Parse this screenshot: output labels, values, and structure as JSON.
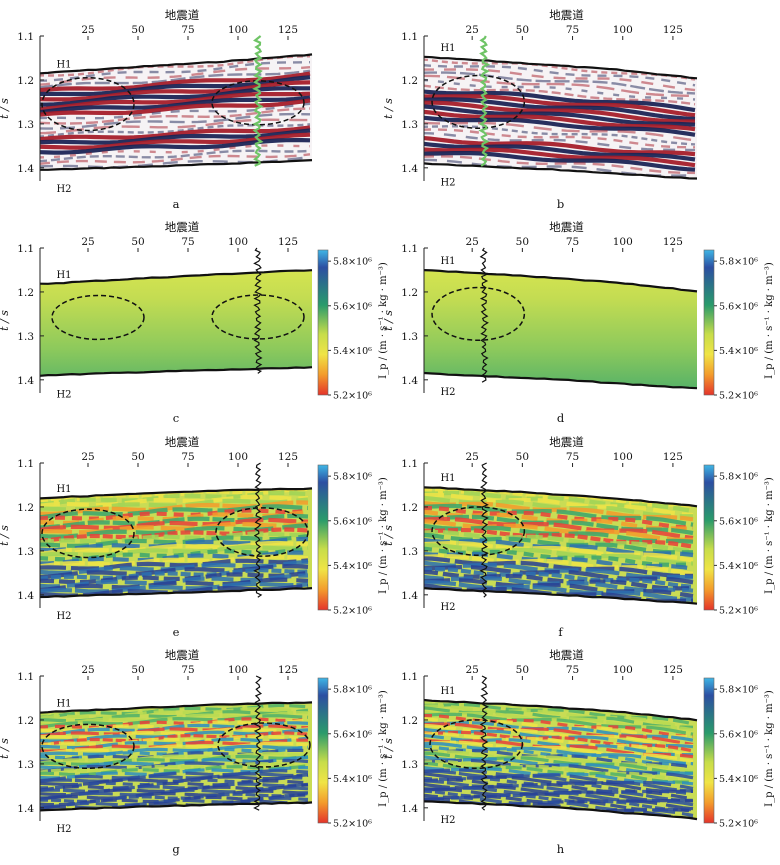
{
  "figure": {
    "top_axis_label": "地震道",
    "y_axis_label": "t / s",
    "colorbar_label": "I_p / (m · s⁻¹ · kg · m⁻³)",
    "colorbar_ticks": [
      "5.8×10⁶",
      "5.6×10⁶",
      "5.4×10⁶",
      "5.2×10⁶"
    ],
    "colors": {
      "trough": "#1b2455",
      "peak": "#a51d2a",
      "well_green": "#6fc466",
      "horizon": "#111111",
      "cmap_low": "#e4342b",
      "cmap_mid": "#f0e446",
      "cmap_high": "#2c4fa2"
    }
  },
  "chart_data": [
    {
      "id": "a",
      "type": "heatmap",
      "caption": "a",
      "kind": "seismic",
      "xlabel": "地震道",
      "ylabel": "t / s",
      "xticks": [
        25,
        50,
        75,
        100,
        125
      ],
      "xlim": [
        1,
        137
      ],
      "yticks": [
        1.1,
        1.2,
        1.3,
        1.4
      ],
      "ylim": [
        1.1,
        1.43
      ],
      "horizons": [
        {
          "name": "H1",
          "points": [
            [
              1,
              1.185
            ],
            [
              40,
              1.173
            ],
            [
              90,
              1.159
            ],
            [
              137,
              1.142
            ]
          ]
        },
        {
          "name": "H2",
          "points": [
            [
              1,
              1.405
            ],
            [
              70,
              1.395
            ],
            [
              137,
              1.383
            ]
          ]
        }
      ],
      "well": {
        "trace": 110,
        "color": "green",
        "t_range": [
          1.1,
          1.4
        ]
      },
      "ellipses": [
        {
          "center": [
            25,
            1.255
          ],
          "radii": [
            23,
            0.06
          ]
        },
        {
          "center": [
            110,
            1.252
          ],
          "radii": [
            23,
            0.05
          ]
        }
      ]
    },
    {
      "id": "b",
      "type": "heatmap",
      "caption": "b",
      "kind": "seismic",
      "xlabel": "地震道",
      "ylabel": "t / s",
      "xticks": [
        25,
        50,
        75,
        100,
        125
      ],
      "xlim": [
        1,
        137
      ],
      "yticks": [
        1.1,
        1.2,
        1.3,
        1.4
      ],
      "ylim": [
        1.1,
        1.43
      ],
      "horizons": [
        {
          "name": "H1",
          "points": [
            [
              1,
              1.148
            ],
            [
              45,
              1.16
            ],
            [
              95,
              1.176
            ],
            [
              137,
              1.196
            ]
          ]
        },
        {
          "name": "H2",
          "points": [
            [
              1,
              1.39
            ],
            [
              70,
              1.405
            ],
            [
              137,
              1.425
            ]
          ]
        }
      ],
      "well": {
        "trace": 31,
        "color": "green",
        "t_range": [
          1.1,
          1.4
        ]
      },
      "ellipses": [
        {
          "center": [
            28,
            1.25
          ],
          "radii": [
            23,
            0.06
          ]
        }
      ]
    },
    {
      "id": "c",
      "type": "heatmap",
      "caption": "c",
      "kind": "impedance-smooth",
      "xlabel": "地震道",
      "ylabel": "t / s",
      "xticks": [
        25,
        50,
        75,
        100,
        125
      ],
      "xlim": [
        1,
        137
      ],
      "yticks": [
        1.1,
        1.2,
        1.3,
        1.4
      ],
      "ylim": [
        1.1,
        1.43
      ],
      "colorbar": {
        "label": "I_p / (m · s⁻¹ · kg · m⁻³)",
        "min": 5200000,
        "max": 5850000,
        "ticks": [
          5800000,
          5600000,
          5400000,
          5200000
        ]
      },
      "horizons": [
        {
          "name": "H1",
          "points": [
            [
              1,
              1.182
            ],
            [
              40,
              1.172
            ],
            [
              90,
              1.16
            ],
            [
              137,
              1.15
            ]
          ]
        },
        {
          "name": "H2",
          "points": [
            [
              1,
              1.39
            ],
            [
              70,
              1.38
            ],
            [
              137,
              1.372
            ]
          ]
        }
      ],
      "well": {
        "trace": 110,
        "color": "black",
        "t_range": [
          1.1,
          1.39
        ]
      },
      "ellipses": [
        {
          "center": [
            30,
            1.258
          ],
          "radii": [
            23,
            0.05
          ]
        },
        {
          "center": [
            110,
            1.257
          ],
          "radii": [
            23,
            0.05
          ]
        }
      ]
    },
    {
      "id": "d",
      "type": "heatmap",
      "caption": "d",
      "kind": "impedance-smooth",
      "xlabel": "地震道",
      "ylabel": "t / s",
      "xticks": [
        25,
        50,
        75,
        100,
        125
      ],
      "xlim": [
        1,
        137
      ],
      "yticks": [
        1.1,
        1.2,
        1.3,
        1.4
      ],
      "ylim": [
        1.1,
        1.43
      ],
      "colorbar": {
        "label": "I_p / (m · s⁻¹ · kg · m⁻³)",
        "min": 5200000,
        "max": 5850000,
        "ticks": [
          5800000,
          5600000,
          5400000,
          5200000
        ]
      },
      "horizons": [
        {
          "name": "H1",
          "points": [
            [
              1,
              1.15
            ],
            [
              45,
              1.162
            ],
            [
              95,
              1.178
            ],
            [
              137,
              1.198
            ]
          ]
        },
        {
          "name": "H2",
          "points": [
            [
              1,
              1.385
            ],
            [
              70,
              1.4
            ],
            [
              137,
              1.42
            ]
          ]
        }
      ],
      "well": {
        "trace": 31,
        "color": "black",
        "t_range": [
          1.1,
          1.41
        ]
      },
      "ellipses": [
        {
          "center": [
            28,
            1.25
          ],
          "radii": [
            23,
            0.06
          ]
        }
      ]
    },
    {
      "id": "e",
      "type": "heatmap",
      "caption": "e",
      "kind": "impedance-detail",
      "xlabel": "地震道",
      "ylabel": "t / s",
      "xticks": [
        25,
        50,
        75,
        100,
        125
      ],
      "xlim": [
        1,
        137
      ],
      "yticks": [
        1.1,
        1.2,
        1.3,
        1.4
      ],
      "ylim": [
        1.1,
        1.43
      ],
      "colorbar": {
        "label": "I_p / (m · s⁻¹ · kg · m⁻³)",
        "min": 5200000,
        "max": 5850000,
        "ticks": [
          5800000,
          5600000,
          5400000,
          5200000
        ]
      },
      "horizons": [
        {
          "name": "H1",
          "points": [
            [
              1,
              1.18
            ],
            [
              40,
              1.172
            ],
            [
              90,
              1.163
            ],
            [
              137,
              1.158
            ]
          ]
        },
        {
          "name": "H2",
          "points": [
            [
              1,
              1.405
            ],
            [
              70,
              1.395
            ],
            [
              137,
              1.385
            ]
          ]
        }
      ],
      "well": {
        "trace": 110,
        "color": "black",
        "t_range": [
          1.1,
          1.41
        ]
      },
      "ellipses": [
        {
          "center": [
            25,
            1.26
          ],
          "radii": [
            23,
            0.055
          ]
        },
        {
          "center": [
            112,
            1.257
          ],
          "radii": [
            23,
            0.055
          ]
        }
      ]
    },
    {
      "id": "f",
      "type": "heatmap",
      "caption": "f",
      "kind": "impedance-detail",
      "xlabel": "地震道",
      "ylabel": "t / s",
      "xticks": [
        25,
        50,
        75,
        100,
        125
      ],
      "xlim": [
        1,
        137
      ],
      "yticks": [
        1.1,
        1.2,
        1.3,
        1.4
      ],
      "ylim": [
        1.1,
        1.43
      ],
      "colorbar": {
        "label": "I_p / (m · s⁻¹ · kg · m⁻³)",
        "min": 5200000,
        "max": 5850000,
        "ticks": [
          5800000,
          5600000,
          5400000,
          5200000
        ]
      },
      "horizons": [
        {
          "name": "H1",
          "points": [
            [
              1,
              1.155
            ],
            [
              45,
              1.165
            ],
            [
              95,
              1.18
            ],
            [
              137,
              1.198
            ]
          ]
        },
        {
          "name": "H2",
          "points": [
            [
              1,
              1.385
            ],
            [
              70,
              1.4
            ],
            [
              137,
              1.42
            ]
          ]
        }
      ],
      "well": {
        "trace": 31,
        "color": "black",
        "t_range": [
          1.1,
          1.41
        ]
      },
      "ellipses": [
        {
          "center": [
            28,
            1.255
          ],
          "radii": [
            23,
            0.055
          ]
        }
      ]
    },
    {
      "id": "g",
      "type": "heatmap",
      "caption": "g",
      "kind": "impedance-fine",
      "xlabel": "地震道",
      "ylabel": "t / s",
      "xticks": [
        25,
        50,
        75,
        100,
        125
      ],
      "xlim": [
        1,
        137
      ],
      "yticks": [
        1.1,
        1.2,
        1.3,
        1.4
      ],
      "ylim": [
        1.1,
        1.43
      ],
      "colorbar": {
        "label": "I_p / (m · s⁻¹ · kg · m⁻³)",
        "min": 5200000,
        "max": 5850000,
        "ticks": [
          5800000,
          5600000,
          5400000,
          5200000
        ]
      },
      "horizons": [
        {
          "name": "H1",
          "points": [
            [
              1,
              1.183
            ],
            [
              40,
              1.175
            ],
            [
              90,
              1.165
            ],
            [
              137,
              1.16
            ]
          ]
        },
        {
          "name": "H2",
          "points": [
            [
              1,
              1.405
            ],
            [
              70,
              1.395
            ],
            [
              137,
              1.388
            ]
          ]
        }
      ],
      "well": {
        "trace": 110,
        "color": "black",
        "t_range": [
          1.1,
          1.41
        ]
      },
      "ellipses": [
        {
          "center": [
            25,
            1.26
          ],
          "radii": [
            23,
            0.05
          ]
        },
        {
          "center": [
            113,
            1.257
          ],
          "radii": [
            23,
            0.05
          ]
        }
      ]
    },
    {
      "id": "h",
      "type": "heatmap",
      "caption": "h",
      "kind": "impedance-fine",
      "xlabel": "地震道",
      "ylabel": "t / s",
      "xticks": [
        25,
        50,
        75,
        100,
        125
      ],
      "xlim": [
        1,
        137
      ],
      "yticks": [
        1.1,
        1.2,
        1.3,
        1.4
      ],
      "ylim": [
        1.1,
        1.43
      ],
      "colorbar": {
        "label": "I_p / (m · s⁻¹ · kg · m⁻³)",
        "min": 5200000,
        "max": 5850000,
        "ticks": [
          5800000,
          5600000,
          5400000,
          5200000
        ]
      },
      "horizons": [
        {
          "name": "H1",
          "points": [
            [
              1,
              1.155
            ],
            [
              45,
              1.165
            ],
            [
              95,
              1.18
            ],
            [
              137,
              1.2
            ]
          ]
        },
        {
          "name": "H2",
          "points": [
            [
              1,
              1.385
            ],
            [
              70,
              1.4
            ],
            [
              137,
              1.425
            ]
          ]
        }
      ],
      "well": {
        "trace": 31,
        "color": "black",
        "t_range": [
          1.1,
          1.41
        ]
      },
      "ellipses": [
        {
          "center": [
            27,
            1.255
          ],
          "radii": [
            23,
            0.055
          ]
        }
      ]
    }
  ]
}
